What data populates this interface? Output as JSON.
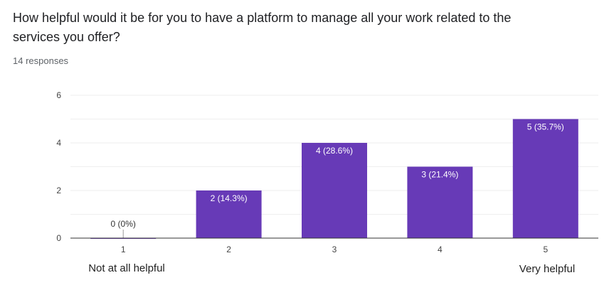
{
  "question": "How helpful would it be for you to have a platform to manage all your work related to the services you offer?",
  "response_count": "14 responses",
  "scale_labels": {
    "low": "Not at all helpful",
    "high": "Very helpful"
  },
  "colors": {
    "bar": "#673ab7",
    "grid": "#eeeeee",
    "axis": "#333333"
  },
  "chart_data": {
    "type": "bar",
    "categories": [
      "1",
      "2",
      "3",
      "4",
      "5"
    ],
    "values": [
      0,
      2,
      4,
      3,
      5
    ],
    "data_labels": [
      "0 (0%)",
      "2 (14.3%)",
      "4 (28.6%)",
      "3 (21.4%)",
      "5 (35.7%)"
    ],
    "ylim": [
      0,
      6
    ],
    "yticks": [
      0,
      2,
      4,
      6
    ],
    "xlabel": "",
    "ylabel": "",
    "grid": true,
    "legend": "none"
  }
}
